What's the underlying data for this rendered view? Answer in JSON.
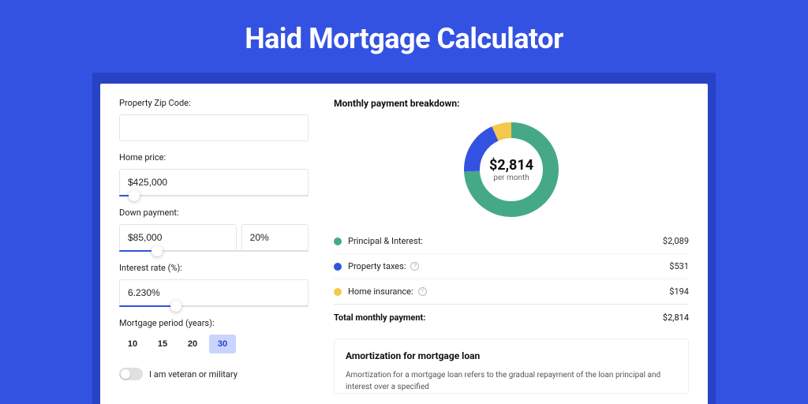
{
  "page": {
    "title": "Haid Mortgage Calculator",
    "bg_color": "#3452e1",
    "band_color": "#2742c4",
    "card_color": "#ffffff"
  },
  "form": {
    "zip_label": "Property Zip Code:",
    "zip_value": "",
    "home_price_label": "Home price:",
    "home_price_value": "$425,000",
    "home_price_slider_pct": 8,
    "down_label": "Down payment:",
    "down_value": "$85,000",
    "down_pct_value": "20%",
    "down_slider_pct": 20,
    "rate_label": "Interest rate (%):",
    "rate_value": "6.230%",
    "rate_slider_pct": 30,
    "period_label": "Mortgage period (years):",
    "period_options": [
      "10",
      "15",
      "20",
      "30"
    ],
    "period_selected": "30",
    "veteran_label": "I am veteran or military",
    "veteran_on": false
  },
  "breakdown": {
    "title": "Monthly payment breakdown:",
    "center_amount": "$2,814",
    "center_sub": "per month",
    "donut": {
      "radius": 50,
      "stroke": 20,
      "slices": [
        {
          "color": "#45a987",
          "fraction": 0.742
        },
        {
          "color": "#3452e1",
          "fraction": 0.189
        },
        {
          "color": "#f3c84b",
          "fraction": 0.069
        }
      ]
    },
    "items": [
      {
        "color": "#45a987",
        "label": "Principal & Interest:",
        "info": false,
        "value": "$2,089"
      },
      {
        "color": "#3452e1",
        "label": "Property taxes:",
        "info": true,
        "value": "$531"
      },
      {
        "color": "#f3c84b",
        "label": "Home insurance:",
        "info": true,
        "value": "$194"
      }
    ],
    "total_label": "Total monthly payment:",
    "total_value": "$2,814"
  },
  "amortization": {
    "title": "Amortization for mortgage loan",
    "text": "Amortization for a mortgage loan refers to the gradual repayment of the loan principal and interest over a specified"
  }
}
